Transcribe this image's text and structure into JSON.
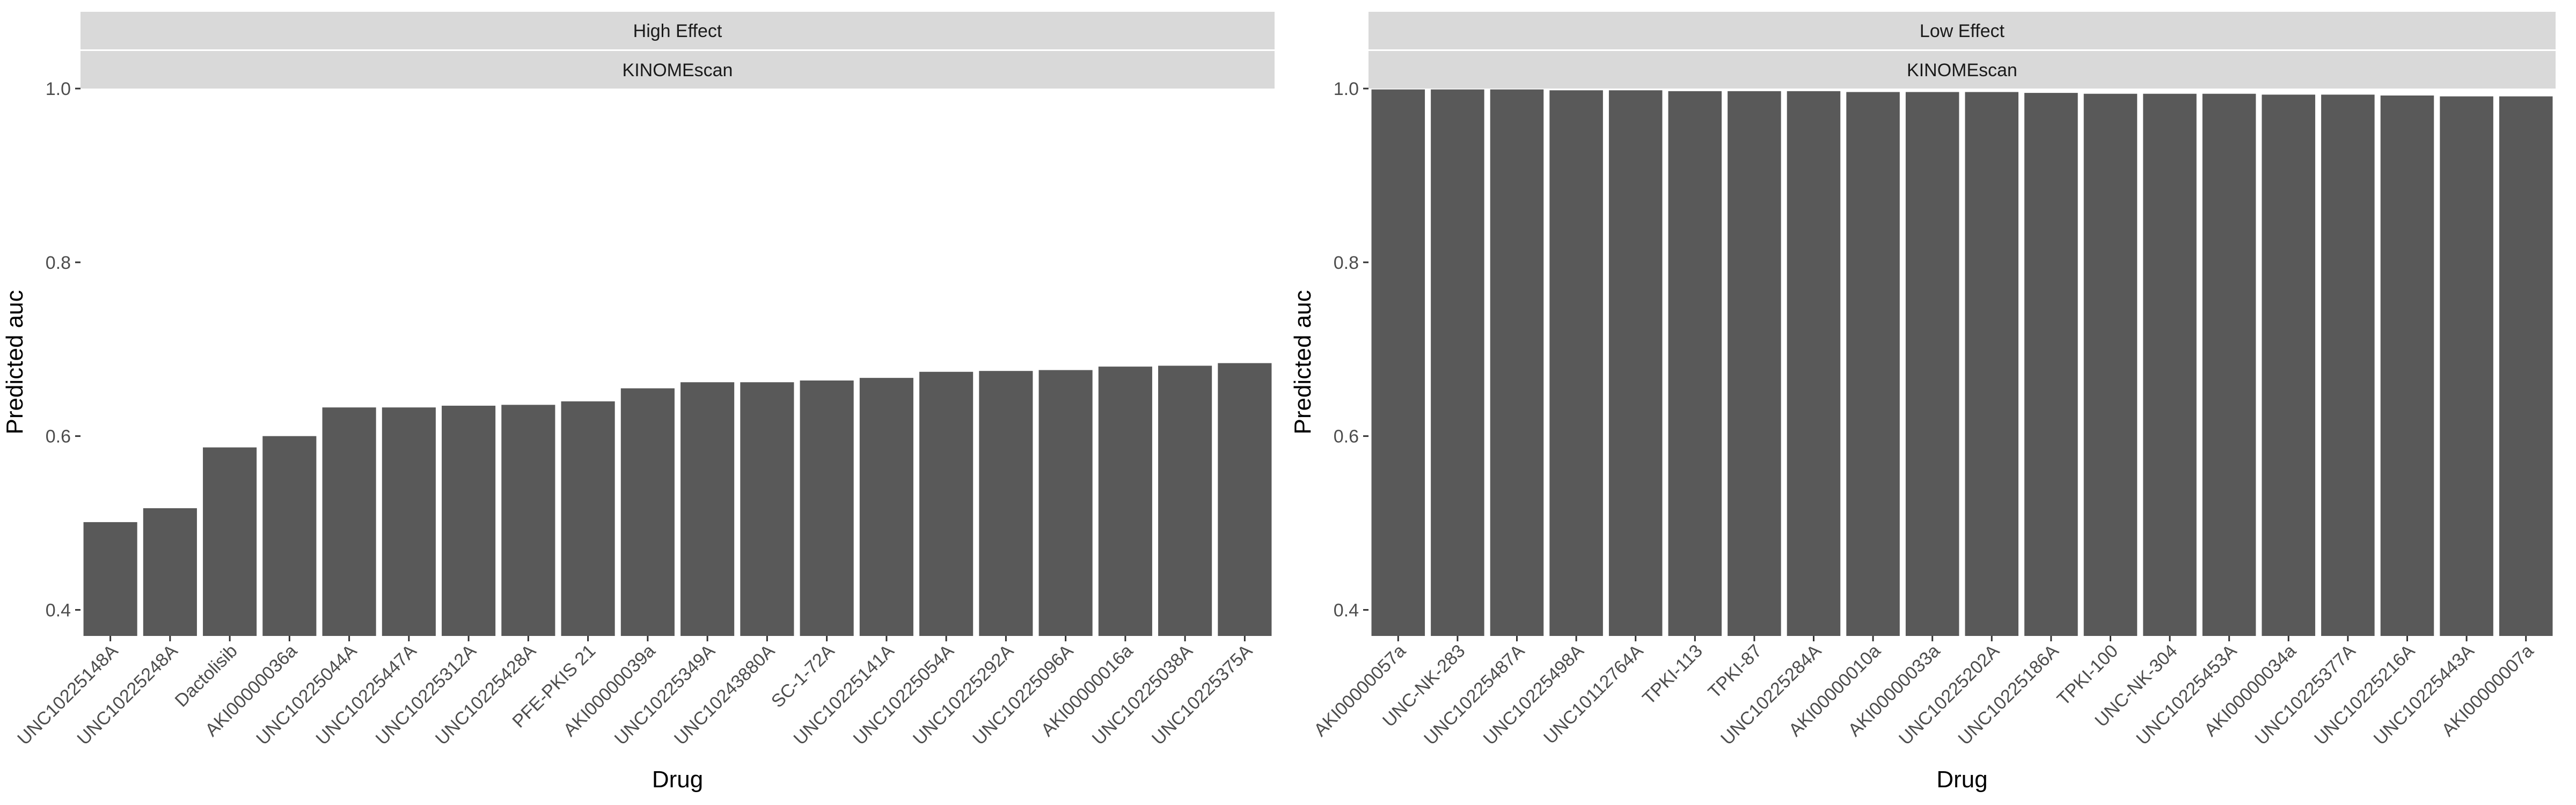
{
  "chart_data": [
    {
      "type": "bar",
      "facet_top": "High Effect",
      "facet_bottom": "KINOMEscan",
      "xlabel": "Drug",
      "ylabel": "Predicted auc",
      "ylim": [
        0.37,
        1.0
      ],
      "yticks": [
        0.4,
        0.6,
        0.8,
        1.0
      ],
      "grid": false,
      "bar_color": "#595959",
      "categories": [
        "UNC10225148A",
        "UNC10225248A",
        "Dactolisib",
        "AKI00000036a",
        "UNC10225044A",
        "UNC10225447A",
        "UNC10225312A",
        "UNC10225428A",
        "PFE-PKIS 21",
        "AKI00000039a",
        "UNC10225349A",
        "UNC10243880A",
        "SC-1-72A",
        "UNC10225141A",
        "UNC10225054A",
        "UNC10225292A",
        "UNC10225096A",
        "AKI00000016a",
        "UNC10225038A",
        "UNC10225375A"
      ],
      "values": [
        0.501,
        0.517,
        0.587,
        0.6,
        0.633,
        0.633,
        0.635,
        0.636,
        0.64,
        0.655,
        0.662,
        0.662,
        0.664,
        0.667,
        0.674,
        0.675,
        0.676,
        0.68,
        0.681,
        0.684
      ]
    },
    {
      "type": "bar",
      "facet_top": "Low Effect",
      "facet_bottom": "KINOMEscan",
      "xlabel": "Drug",
      "ylabel": "Predicted auc",
      "ylim": [
        0.37,
        1.0
      ],
      "yticks": [
        0.4,
        0.6,
        0.8,
        1.0
      ],
      "grid": false,
      "bar_color": "#595959",
      "categories": [
        "AKI00000057a",
        "UNC-NK-283",
        "UNC10225487A",
        "UNC10225498A",
        "UNC10112764A",
        "TPKI-113",
        "TPKI-87",
        "UNC10225284A",
        "AKI00000010a",
        "AKI00000033a",
        "UNC10225202A",
        "UNC10225186A",
        "TPKI-100",
        "UNC-NK-304",
        "UNC10225453A",
        "AKI00000034a",
        "UNC10225377A",
        "UNC10225216A",
        "UNC10225443A",
        "AKI00000007a"
      ],
      "values": [
        0.999,
        0.999,
        0.999,
        0.998,
        0.998,
        0.997,
        0.997,
        0.997,
        0.996,
        0.996,
        0.996,
        0.995,
        0.994,
        0.994,
        0.994,
        0.993,
        0.993,
        0.992,
        0.991,
        0.991
      ]
    }
  ]
}
